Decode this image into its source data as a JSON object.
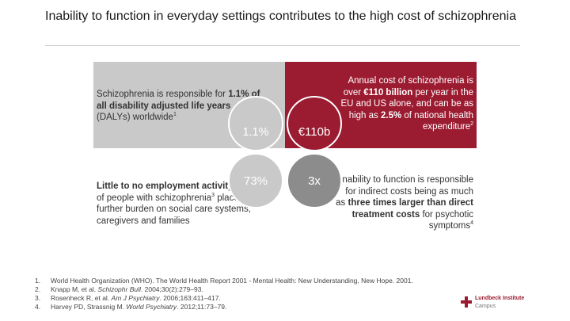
{
  "slide": {
    "title": "Inability to function in everyday settings contributes to the high cost of schizophrenia"
  },
  "quadrants": {
    "top_left": {
      "text_1": "Schizophrenia is responsible for ",
      "bold": "1.1% of all disability adjusted life years",
      "text_2": " (DALYs) worldwide",
      "sup": "1"
    },
    "top_right": {
      "text_1": "Annual cost of schizophrenia is over ",
      "bold_1": "€110 billion",
      "text_2": " per year in the EU and US alone, and can be as high as ",
      "bold_2": "2.5%",
      "text_3": " of national health expenditure",
      "sup": "2"
    },
    "bottom_left": {
      "bold": "Little to no employment activity",
      "text_1": " by 73% of people with schizophrenia",
      "sup": "3",
      "text_2": " places further burden on social care systems, caregivers and families"
    },
    "bottom_right": {
      "text_1": "Inability to function is responsible for indirect costs being as much as ",
      "bold": "three times larger than direct treatment costs",
      "text_2": " for psychotic symptoms",
      "sup": "4"
    }
  },
  "circles": {
    "top_left": "1.1%",
    "top_right": "€110b",
    "bottom_left": "73%",
    "bottom_right": "3x"
  },
  "references": [
    {
      "num": "1.",
      "text_1": "World Health Organization (WHO). The World Health Report 2001 - Mental Health: New Understanding, New Hope. 2001.",
      "italic": "",
      "text_2": ""
    },
    {
      "num": "2.",
      "text_1": "Knapp M, et al. ",
      "italic": "Schizophr Bull",
      "text_2": ". 2004;30(2):279–93."
    },
    {
      "num": "3.",
      "text_1": "Rosenheck R, et al. ",
      "italic": "Am J Psychiatry",
      "text_2": ". 2006;163:411–417."
    },
    {
      "num": "4.",
      "text_1": "Harvey PD, Strassnig M. ",
      "italic": "World Psychiatry",
      "text_2": ". 2012;11:73–79."
    }
  ],
  "logo": {
    "line1": "Lundbeck Institute",
    "line2": "Campus"
  },
  "colors": {
    "accent": "#9b1b30",
    "light_grey": "#c9c9c9",
    "dark_grey": "#8c8c8c"
  }
}
